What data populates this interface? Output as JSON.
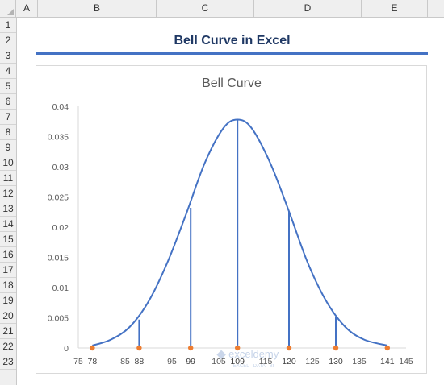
{
  "columns": [
    "A",
    "B",
    "C",
    "D",
    "E"
  ],
  "rows": [
    "1",
    "2",
    "3",
    "4",
    "5",
    "6",
    "7",
    "8",
    "9",
    "10",
    "11",
    "12",
    "13",
    "14",
    "15",
    "16",
    "17",
    "18",
    "19",
    "20",
    "21",
    "22",
    "23"
  ],
  "sheet_title": "Bell Curve in Excel",
  "watermark": {
    "brand": "exceldemy",
    "tagline": "EXCEL · DATA · BI"
  },
  "chart_data": {
    "type": "scatter",
    "title": "Bell Curve",
    "xlabel": "",
    "ylabel": "",
    "xlim": [
      75,
      145
    ],
    "ylim": [
      0,
      0.04
    ],
    "x_ticks": [
      75,
      85,
      95,
      105,
      115,
      125,
      135,
      145
    ],
    "y_ticks": [
      0,
      0.005,
      0.01,
      0.015,
      0.02,
      0.025,
      0.03,
      0.035,
      0.04
    ],
    "y_tick_labels": [
      "0",
      "0.005",
      "0.01",
      "0.015",
      "0.02",
      "0.025",
      "0.03",
      "0.035",
      "0.04"
    ],
    "marked_x_labels": [
      78,
      88,
      99,
      109,
      120,
      130,
      141
    ],
    "curve": {
      "x": [
        78,
        82,
        86,
        90,
        94,
        98,
        102,
        106,
        109,
        112,
        116,
        120,
        124,
        128,
        132,
        136,
        141
      ],
      "y": [
        0.0004,
        0.0014,
        0.0035,
        0.0077,
        0.0141,
        0.0221,
        0.0306,
        0.0364,
        0.0378,
        0.0364,
        0.0306,
        0.0226,
        0.0141,
        0.0077,
        0.0035,
        0.0014,
        0.0004
      ]
    },
    "drop_lines": [
      {
        "x": 88,
        "y": 0.0047
      },
      {
        "x": 99,
        "y": 0.0232
      },
      {
        "x": 109,
        "y": 0.0378
      },
      {
        "x": 120,
        "y": 0.0226
      },
      {
        "x": 130,
        "y": 0.0052
      }
    ],
    "points": [
      {
        "x": 78,
        "y": 0
      },
      {
        "x": 88,
        "y": 0
      },
      {
        "x": 99,
        "y": 0
      },
      {
        "x": 109,
        "y": 0
      },
      {
        "x": 120,
        "y": 0
      },
      {
        "x": 130,
        "y": 0
      },
      {
        "x": 141,
        "y": 0
      }
    ],
    "grid": false,
    "line_color": "#4472c4",
    "point_color": "#ed7d31"
  }
}
